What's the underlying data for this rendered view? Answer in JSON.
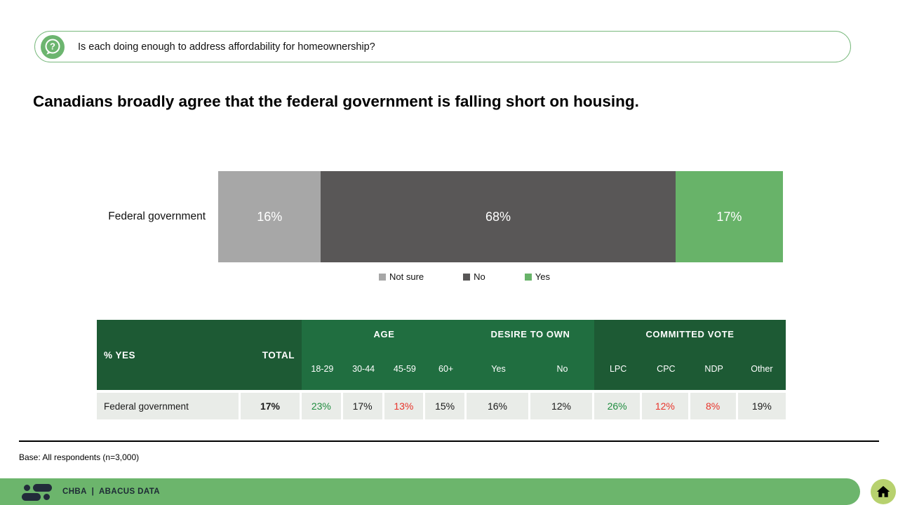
{
  "question_banner": {
    "text": "Is each doing enough to address affordability for homeownership?"
  },
  "headline": "Canadians broadly agree that the federal government is falling short on housing.",
  "chart_data": {
    "type": "bar",
    "orientation": "horizontal",
    "stacked": true,
    "categories": [
      "Federal government"
    ],
    "series": [
      {
        "name": "Not sure",
        "values": [
          16
        ],
        "color": "#a7a7a7"
      },
      {
        "name": "No",
        "values": [
          68
        ],
        "color": "#595757"
      },
      {
        "name": "Yes",
        "values": [
          17
        ],
        "color": "#68b369"
      }
    ],
    "value_labels": [
      "16%",
      "68%",
      "17%"
    ],
    "xlim": [
      0,
      101
    ],
    "legend_position": "bottom",
    "grid": false
  },
  "table": {
    "corner_label": "% YES",
    "total_label": "TOTAL",
    "groups": [
      {
        "label": "AGE",
        "shade": "light",
        "columns": [
          "18-29",
          "30-44",
          "45-59",
          "60+"
        ]
      },
      {
        "label": "DESIRE TO OWN",
        "shade": "light",
        "columns": [
          "Yes",
          "No"
        ]
      },
      {
        "label": "COMMITTED VOTE",
        "shade": "dark",
        "columns": [
          "LPC",
          "CPC",
          "NDP",
          "Other"
        ]
      }
    ],
    "rows": [
      {
        "label": "Federal government",
        "total": "17%",
        "cells": [
          {
            "value": "23%",
            "tone": "positive"
          },
          {
            "value": "17%",
            "tone": "neutral"
          },
          {
            "value": "13%",
            "tone": "negative"
          },
          {
            "value": "15%",
            "tone": "neutral"
          },
          {
            "value": "16%",
            "tone": "neutral"
          },
          {
            "value": "12%",
            "tone": "neutral"
          },
          {
            "value": "26%",
            "tone": "positive"
          },
          {
            "value": "12%",
            "tone": "negative"
          },
          {
            "value": "8%",
            "tone": "negative"
          },
          {
            "value": "19%",
            "tone": "neutral"
          }
        ]
      }
    ]
  },
  "footnote": "Base: All respondents (n=3,000)",
  "footer": {
    "brand": "CHBA  |  ABACUS DATA"
  },
  "colors": {
    "accent_green": "#6cb56c",
    "header_dark": "#1d5a34",
    "header_light": "#206e40",
    "row_bg": "#e9ece8",
    "positive": "#1e8c3e",
    "negative": "#e8332a",
    "bar_not_sure": "#a7a7a7",
    "bar_no": "#595757",
    "bar_yes": "#68b369",
    "home_badge": "#b7d16e",
    "logo_navy": "#222c3a"
  }
}
